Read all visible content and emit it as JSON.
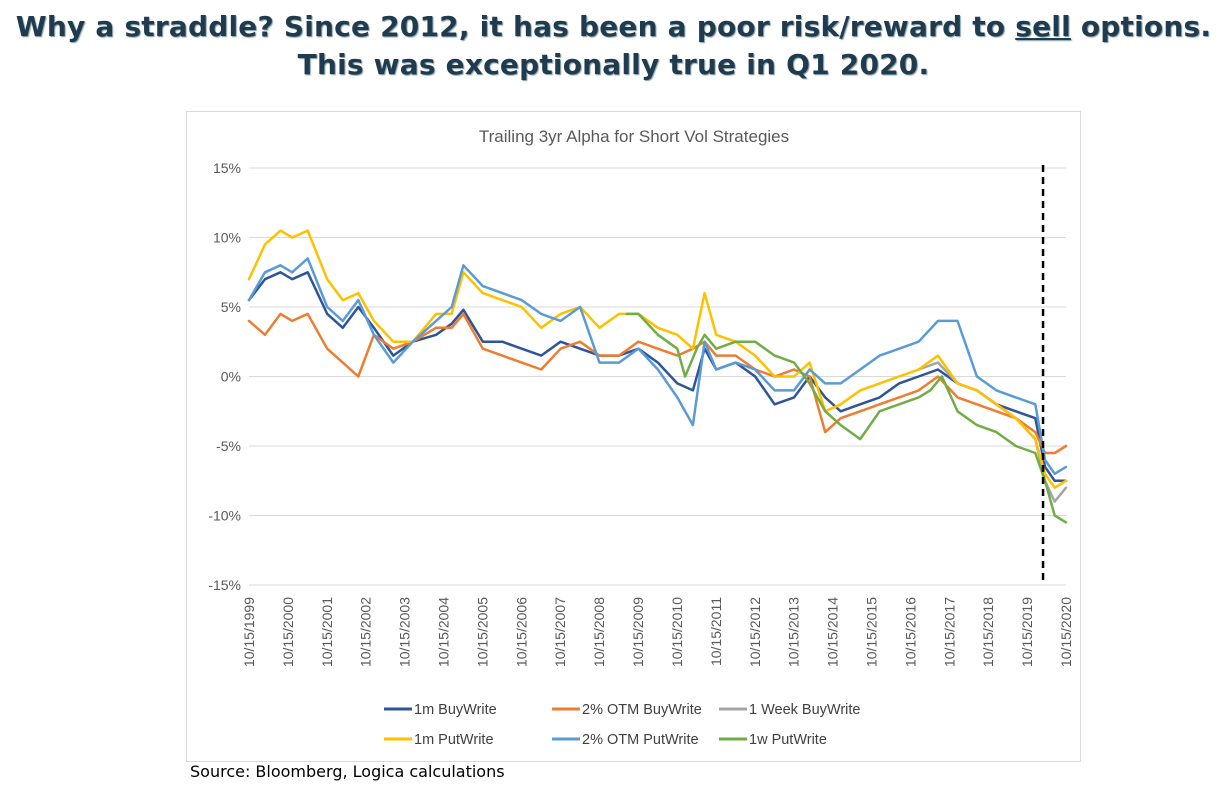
{
  "headline": {
    "line1_a": "Why a straddle?  Since 2012, it has been a poor risk/reward to ",
    "line1_underlined": "sell",
    "line1_b": " options.",
    "line2": "This was exceptionally true in Q1 2020."
  },
  "source": "Source: Bloomberg, Logica calculations",
  "chart_data": {
    "type": "line",
    "title": "Trailing 3yr Alpha for Short Vol Strategies",
    "ylim": [
      -15,
      15
    ],
    "yticks": [
      -15,
      -10,
      -5,
      0,
      5,
      10,
      15
    ],
    "ytick_labels": [
      "-15%",
      "-10%",
      "-5%",
      "0%",
      "5%",
      "10%",
      "15%"
    ],
    "xlim": [
      1999.79,
      2020.79
    ],
    "xtick_labels": [
      "10/15/1999",
      "10/15/2000",
      "10/15/2001",
      "10/15/2002",
      "10/15/2003",
      "10/15/2004",
      "10/15/2005",
      "10/15/2006",
      "10/15/2007",
      "10/15/2008",
      "10/15/2009",
      "10/15/2010",
      "10/15/2011",
      "10/15/2012",
      "10/15/2013",
      "10/15/2014",
      "10/15/2015",
      "10/15/2016",
      "10/15/2017",
      "10/15/2018",
      "10/15/2019",
      "10/15/2020"
    ],
    "xticks": [
      1999.79,
      2000.79,
      2001.79,
      2002.79,
      2003.79,
      2004.79,
      2005.79,
      2006.79,
      2007.79,
      2008.79,
      2009.79,
      2010.79,
      2011.79,
      2012.79,
      2013.79,
      2014.79,
      2015.79,
      2016.79,
      2017.79,
      2018.79,
      2019.79,
      2020.79
    ],
    "grid": "horizontal",
    "legend_position": "bottom",
    "vline": {
      "x": 2020.2,
      "style": "dashed",
      "color": "#000000"
    },
    "series": [
      {
        "name": "1m BuyWrite",
        "color": "#2f5597",
        "x": [
          1999.79,
          2000.2,
          2000.6,
          2000.9,
          2001.3,
          2001.8,
          2002.2,
          2002.6,
          2003.0,
          2003.5,
          2004.0,
          2004.6,
          2005.0,
          2005.3,
          2005.8,
          2006.3,
          2006.8,
          2007.3,
          2007.8,
          2008.3,
          2008.8,
          2009.3,
          2009.8,
          2010.3,
          2010.8,
          2011.2,
          2011.5,
          2011.8,
          2012.3,
          2012.8,
          2013.3,
          2013.8,
          2014.2,
          2014.6,
          2015.0,
          2015.5,
          2016.0,
          2016.5,
          2017.0,
          2017.5,
          2018.0,
          2018.5,
          2019.0,
          2019.5,
          2020.0,
          2020.25,
          2020.5,
          2020.79
        ],
        "y": [
          5.5,
          7.0,
          7.5,
          7.0,
          7.5,
          4.5,
          3.5,
          5.0,
          3.5,
          1.5,
          2.5,
          3.0,
          3.8,
          4.8,
          2.5,
          2.5,
          2.0,
          1.5,
          2.5,
          2.0,
          1.5,
          1.5,
          2.0,
          1.0,
          -0.5,
          -1.0,
          2.0,
          0.5,
          1.0,
          0.0,
          -2.0,
          -1.5,
          0.0,
          -1.5,
          -2.5,
          -2.0,
          -1.5,
          -0.5,
          0.0,
          0.5,
          -0.5,
          -1.0,
          -2.0,
          -2.5,
          -3.0,
          -6.5,
          -7.5,
          -7.5
        ]
      },
      {
        "name": "2% OTM BuyWrite",
        "color": "#ed7d31",
        "x": [
          1999.79,
          2000.2,
          2000.6,
          2000.9,
          2001.3,
          2001.8,
          2002.2,
          2002.6,
          2003.0,
          2003.5,
          2004.0,
          2004.6,
          2005.0,
          2005.3,
          2005.8,
          2006.3,
          2006.8,
          2007.3,
          2007.8,
          2008.3,
          2008.8,
          2009.3,
          2009.8,
          2010.3,
          2010.8,
          2011.2,
          2011.5,
          2011.8,
          2012.3,
          2012.8,
          2013.3,
          2013.8,
          2014.2,
          2014.6,
          2015.0,
          2015.5,
          2016.0,
          2016.5,
          2017.0,
          2017.5,
          2018.0,
          2018.5,
          2019.0,
          2019.5,
          2020.0,
          2020.25,
          2020.5,
          2020.79
        ],
        "y": [
          4.0,
          3.0,
          4.5,
          4.0,
          4.5,
          2.0,
          1.0,
          0.0,
          3.0,
          2.0,
          2.5,
          3.5,
          3.5,
          4.5,
          2.0,
          1.5,
          1.0,
          0.5,
          2.0,
          2.5,
          1.5,
          1.5,
          2.5,
          2.0,
          1.5,
          2.0,
          2.5,
          1.5,
          1.5,
          0.5,
          0.0,
          0.5,
          0.0,
          -4.0,
          -3.0,
          -2.5,
          -2.0,
          -1.5,
          -1.0,
          0.0,
          -1.5,
          -2.0,
          -2.5,
          -3.0,
          -4.0,
          -5.5,
          -5.5,
          -5.0
        ]
      },
      {
        "name": "1 Week BuyWrite",
        "color": "#a5a5a5",
        "x": [
          2017.0,
          2017.5,
          2018.0,
          2018.5,
          2019.0,
          2019.5,
          2020.0,
          2020.25,
          2020.5,
          2020.79
        ],
        "y": [
          0.5,
          1.0,
          -0.5,
          -1.0,
          -2.0,
          -3.0,
          -4.5,
          -7.5,
          -9.0,
          -8.0
        ]
      },
      {
        "name": "1m PutWrite",
        "color": "#ffc000",
        "x": [
          1999.79,
          2000.2,
          2000.6,
          2000.9,
          2001.3,
          2001.8,
          2002.2,
          2002.6,
          2003.0,
          2003.5,
          2004.0,
          2004.6,
          2005.0,
          2005.3,
          2005.8,
          2006.3,
          2006.8,
          2007.3,
          2007.8,
          2008.3,
          2008.8,
          2009.3,
          2009.8,
          2010.3,
          2010.8,
          2011.2,
          2011.5,
          2011.8,
          2012.3,
          2012.8,
          2013.3,
          2013.8,
          2014.2,
          2014.6,
          2015.0,
          2015.5,
          2016.0,
          2016.5,
          2017.0,
          2017.5,
          2018.0,
          2018.5,
          2019.0,
          2019.5,
          2020.0,
          2020.25,
          2020.5,
          2020.79
        ],
        "y": [
          7.0,
          9.5,
          10.5,
          10.0,
          10.5,
          7.0,
          5.5,
          6.0,
          4.0,
          2.5,
          2.5,
          4.5,
          4.5,
          7.5,
          6.0,
          5.5,
          5.0,
          3.5,
          4.5,
          5.0,
          3.5,
          4.5,
          4.5,
          3.5,
          3.0,
          2.0,
          6.0,
          3.0,
          2.5,
          1.5,
          0.0,
          0.0,
          1.0,
          -2.5,
          -2.0,
          -1.0,
          -0.5,
          0.0,
          0.5,
          1.5,
          -0.5,
          -1.0,
          -2.0,
          -3.0,
          -4.5,
          -7.0,
          -8.0,
          -7.5
        ]
      },
      {
        "name": "2% OTM PutWrite",
        "color": "#5b9bd5",
        "x": [
          1999.79,
          2000.2,
          2000.6,
          2000.9,
          2001.3,
          2001.8,
          2002.2,
          2002.6,
          2003.0,
          2003.5,
          2004.0,
          2004.6,
          2005.0,
          2005.3,
          2005.8,
          2006.3,
          2006.8,
          2007.3,
          2007.8,
          2008.3,
          2008.8,
          2009.3,
          2009.8,
          2010.3,
          2010.8,
          2011.2,
          2011.5,
          2011.8,
          2012.3,
          2012.8,
          2013.3,
          2013.8,
          2014.2,
          2014.6,
          2015.0,
          2015.5,
          2016.0,
          2016.5,
          2017.0,
          2017.5,
          2018.0,
          2018.5,
          2019.0,
          2019.5,
          2020.0,
          2020.25,
          2020.5,
          2020.79
        ],
        "y": [
          5.5,
          7.5,
          8.0,
          7.5,
          8.5,
          5.0,
          4.0,
          5.5,
          3.0,
          1.0,
          2.5,
          4.0,
          5.0,
          8.0,
          6.5,
          6.0,
          5.5,
          4.5,
          4.0,
          5.0,
          1.0,
          1.0,
          2.0,
          0.5,
          -1.5,
          -3.5,
          2.5,
          0.5,
          1.0,
          0.5,
          -1.0,
          -1.0,
          0.5,
          -0.5,
          -0.5,
          0.5,
          1.5,
          2.0,
          2.5,
          4.0,
          4.0,
          0.0,
          -1.0,
          -1.5,
          -2.0,
          -6.0,
          -7.0,
          -6.5
        ]
      },
      {
        "name": "1w PutWrite",
        "color": "#70ad47",
        "x": [
          2009.5,
          2009.8,
          2010.3,
          2010.8,
          2011.0,
          2011.3,
          2011.5,
          2011.8,
          2012.3,
          2012.8,
          2013.3,
          2013.8,
          2014.2,
          2014.6,
          2015.0,
          2015.5,
          2016.0,
          2016.5,
          2017.0,
          2017.3,
          2017.6,
          2018.0,
          2018.5,
          2019.0,
          2019.5,
          2020.0,
          2020.25,
          2020.5,
          2020.79
        ],
        "y": [
          4.5,
          4.5,
          3.0,
          2.0,
          0.0,
          2.0,
          3.0,
          2.0,
          2.5,
          2.5,
          1.5,
          1.0,
          -0.5,
          -2.5,
          -3.5,
          -4.5,
          -2.5,
          -2.0,
          -1.5,
          -1.0,
          0.0,
          -2.5,
          -3.5,
          -4.0,
          -5.0,
          -5.5,
          -7.5,
          -10.0,
          -10.5
        ]
      }
    ]
  }
}
